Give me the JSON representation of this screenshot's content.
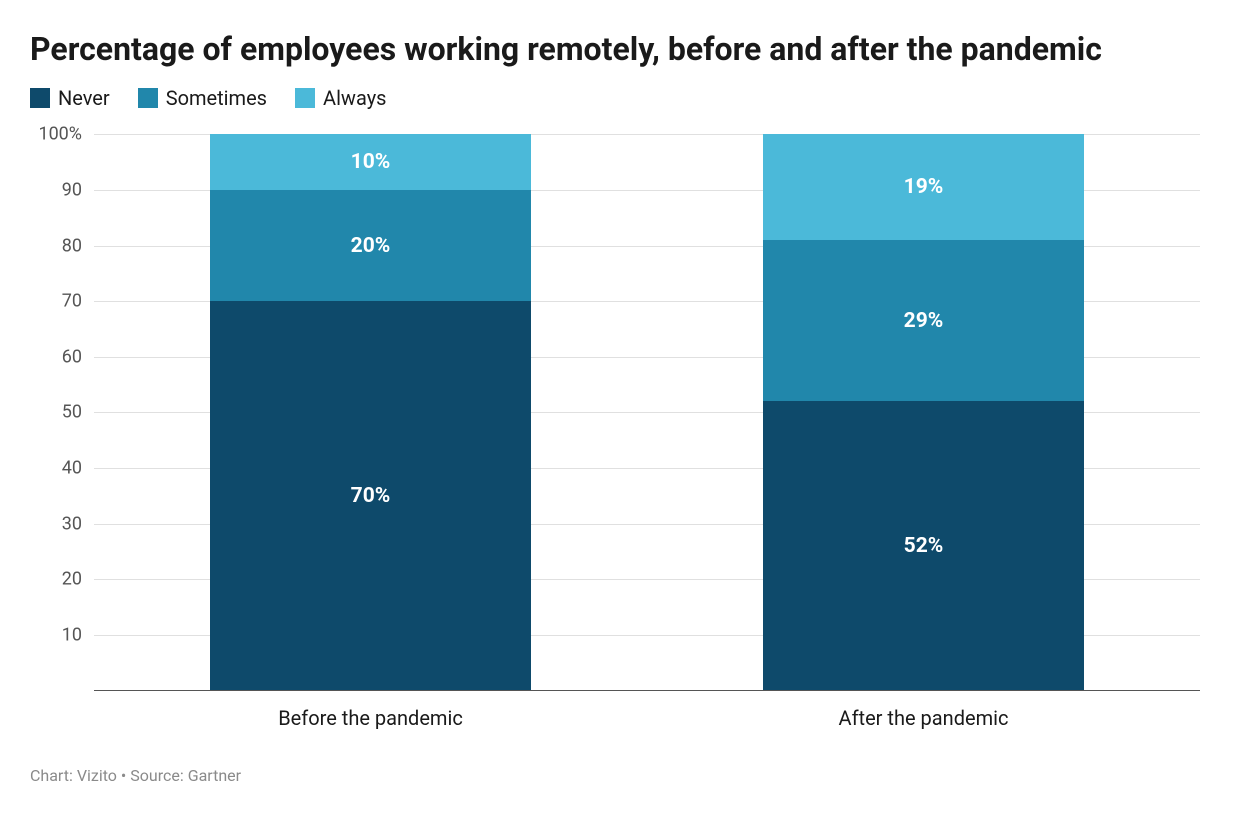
{
  "chart": {
    "type": "stacked-bar",
    "title": "Percentage of employees working remotely, before and after the pandemic",
    "legend": [
      {
        "label": "Never",
        "color": "#0e4a6b"
      },
      {
        "label": "Sometimes",
        "color": "#2187ab"
      },
      {
        "label": "Always",
        "color": "#4bb9d9"
      }
    ],
    "categories": [
      {
        "label": "Before the pandemic",
        "segments": [
          {
            "series": "Never",
            "value": 70,
            "display": "70%",
            "color": "#0e4a6b"
          },
          {
            "series": "Sometimes",
            "value": 20,
            "display": "20%",
            "color": "#2187ab"
          },
          {
            "series": "Always",
            "value": 10,
            "display": "10%",
            "color": "#4bb9d9"
          }
        ]
      },
      {
        "label": "After the pandemic",
        "segments": [
          {
            "series": "Never",
            "value": 52,
            "display": "52%",
            "color": "#0e4a6b"
          },
          {
            "series": "Sometimes",
            "value": 29,
            "display": "29%",
            "color": "#2187ab"
          },
          {
            "series": "Always",
            "value": 19,
            "display": "19%",
            "color": "#4bb9d9"
          }
        ]
      }
    ],
    "y_axis": {
      "min": 0,
      "max": 100,
      "tick_step": 10,
      "top_label": "100%",
      "ticks": [
        {
          "v": 100,
          "label": "100%"
        },
        {
          "v": 90,
          "label": "90"
        },
        {
          "v": 80,
          "label": "80"
        },
        {
          "v": 70,
          "label": "70"
        },
        {
          "v": 60,
          "label": "60"
        },
        {
          "v": 50,
          "label": "50"
        },
        {
          "v": 40,
          "label": "40"
        },
        {
          "v": 30,
          "label": "30"
        },
        {
          "v": 20,
          "label": "20"
        },
        {
          "v": 10,
          "label": "10"
        }
      ],
      "unit": "%"
    },
    "style": {
      "background_color": "#ffffff",
      "grid_color": "#e0e0e0",
      "axis_color": "#555555",
      "title_fontsize": 32,
      "title_fontweight": 700,
      "legend_fontsize": 20,
      "axis_label_fontsize": 18,
      "axis_label_color": "#555555",
      "x_label_fontsize": 20,
      "value_label_fontsize": 21,
      "value_label_color": "#ffffff",
      "value_label_fontweight": 700,
      "bar_width_ratio": 0.58
    },
    "footer": "Chart: Vizito • Source: Gartner"
  }
}
